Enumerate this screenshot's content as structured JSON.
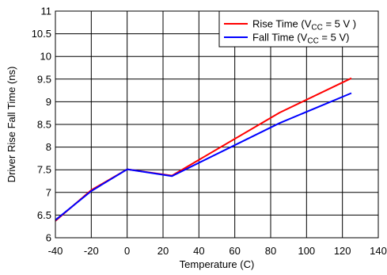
{
  "chart_data": {
    "type": "line",
    "xlabel": "Temperature (C)",
    "ylabel": "Driver Rise Fall Time (ns)",
    "xlim": [
      -40,
      140
    ],
    "ylim": [
      6,
      11
    ],
    "xticks": [
      -40,
      -20,
      0,
      20,
      40,
      60,
      80,
      100,
      120,
      140
    ],
    "yticks": [
      6,
      6.5,
      7,
      7.5,
      8,
      8.5,
      9,
      9.5,
      10,
      10.5,
      11
    ],
    "xtick_labels": [
      "-40",
      "-20",
      "0",
      "20",
      "40",
      "60",
      "80",
      "100",
      "120",
      "140"
    ],
    "ytick_labels": [
      "6",
      "6.5",
      "7",
      "7.5",
      "8",
      "8.5",
      "9",
      "9.5",
      "10",
      "10.5",
      "11"
    ],
    "grid": true,
    "legend_position": "top-right",
    "series": [
      {
        "name": "Rise Time (VCC = 5 V )",
        "legend_main": "Rise Time (V",
        "legend_sub": "CC",
        "legend_rest": " = 5 V )",
        "color": "#ff0000",
        "x": [
          -40,
          -20,
          0,
          25,
          85,
          125
        ],
        "y": [
          6.37,
          7.05,
          7.51,
          7.37,
          8.76,
          9.52
        ]
      },
      {
        "name": "Fall Time (VCC = 5 V)",
        "legend_main": "Fall Time (V",
        "legend_sub": "CC",
        "legend_rest": " = 5 V)",
        "color": "#0000ff",
        "x": [
          -40,
          -20,
          0,
          25,
          85,
          125
        ],
        "y": [
          6.39,
          7.03,
          7.51,
          7.36,
          8.53,
          9.19
        ]
      }
    ]
  }
}
